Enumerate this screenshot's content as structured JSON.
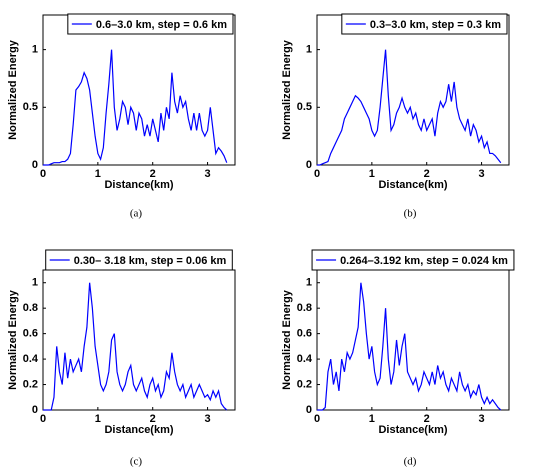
{
  "chart_data": [
    {
      "type": "line",
      "caption": "(a)",
      "xlabel": "Distance(km)",
      "ylabel": "Normalized Energy",
      "xlim": [
        0,
        3.5
      ],
      "ylim": [
        0,
        1.3
      ],
      "xticks": [
        0,
        1,
        2,
        3
      ],
      "yticks": [
        0,
        0.5,
        1
      ],
      "x": [
        0,
        0.05,
        0.1,
        0.15,
        0.2,
        0.25,
        0.3,
        0.35,
        0.4,
        0.45,
        0.5,
        0.55,
        0.6,
        0.65,
        0.7,
        0.75,
        0.8,
        0.85,
        0.9,
        0.95,
        1,
        1.05,
        1.1,
        1.15,
        1.2,
        1.25,
        1.3,
        1.35,
        1.4,
        1.45,
        1.5,
        1.55,
        1.6,
        1.65,
        1.7,
        1.75,
        1.8,
        1.85,
        1.9,
        1.95,
        2,
        2.05,
        2.1,
        2.15,
        2.2,
        2.25,
        2.3,
        2.35,
        2.4,
        2.45,
        2.5,
        2.55,
        2.6,
        2.65,
        2.7,
        2.75,
        2.8,
        2.85,
        2.9,
        2.95,
        3,
        3.05,
        3.1,
        3.15,
        3.2,
        3.25,
        3.3,
        3.35
      ],
      "series": [
        {
          "name": "0.6–3.0 km, step = 0.6 km",
          "color": "#0000ff",
          "values": [
            0,
            0,
            0,
            0.01,
            0.02,
            0.02,
            0.02,
            0.03,
            0.03,
            0.05,
            0.1,
            0.35,
            0.65,
            0.68,
            0.72,
            0.8,
            0.75,
            0.65,
            0.45,
            0.25,
            0.1,
            0.05,
            0.15,
            0.45,
            0.7,
            1,
            0.5,
            0.3,
            0.4,
            0.55,
            0.5,
            0.35,
            0.5,
            0.45,
            0.3,
            0.45,
            0.4,
            0.25,
            0.35,
            0.25,
            0.4,
            0.3,
            0.2,
            0.45,
            0.3,
            0.5,
            0.4,
            0.8,
            0.55,
            0.45,
            0.6,
            0.5,
            0.55,
            0.4,
            0.3,
            0.45,
            0.3,
            0.45,
            0.3,
            0.25,
            0.3,
            0.5,
            0.3,
            0.1,
            0.15,
            0.12,
            0.08,
            0.02
          ]
        }
      ]
    },
    {
      "type": "line",
      "caption": "(b)",
      "xlabel": "Distance(km)",
      "ylabel": "Normalized Energy",
      "xlim": [
        0,
        3.5
      ],
      "ylim": [
        0,
        1.3
      ],
      "xticks": [
        0,
        1,
        2,
        3
      ],
      "yticks": [
        0,
        0.5,
        1
      ],
      "x": [
        0,
        0.05,
        0.1,
        0.15,
        0.2,
        0.25,
        0.3,
        0.35,
        0.4,
        0.45,
        0.5,
        0.55,
        0.6,
        0.65,
        0.7,
        0.75,
        0.8,
        0.85,
        0.9,
        0.95,
        1,
        1.05,
        1.1,
        1.15,
        1.2,
        1.25,
        1.3,
        1.35,
        1.4,
        1.45,
        1.5,
        1.55,
        1.6,
        1.65,
        1.7,
        1.75,
        1.8,
        1.85,
        1.9,
        1.95,
        2,
        2.05,
        2.1,
        2.15,
        2.2,
        2.25,
        2.3,
        2.35,
        2.4,
        2.45,
        2.5,
        2.55,
        2.6,
        2.65,
        2.7,
        2.75,
        2.8,
        2.85,
        2.9,
        2.95,
        3,
        3.05,
        3.1,
        3.15,
        3.2,
        3.25,
        3.3,
        3.35
      ],
      "series": [
        {
          "name": "0.3–3.0 km, step = 0.3 km",
          "color": "#0000ff",
          "values": [
            0,
            0,
            0.01,
            0.02,
            0.03,
            0.1,
            0.15,
            0.2,
            0.25,
            0.3,
            0.4,
            0.45,
            0.5,
            0.55,
            0.6,
            0.58,
            0.55,
            0.5,
            0.45,
            0.4,
            0.3,
            0.25,
            0.3,
            0.5,
            0.75,
            1,
            0.6,
            0.3,
            0.35,
            0.45,
            0.5,
            0.58,
            0.5,
            0.45,
            0.5,
            0.4,
            0.45,
            0.35,
            0.3,
            0.4,
            0.3,
            0.35,
            0.4,
            0.25,
            0.45,
            0.55,
            0.5,
            0.55,
            0.7,
            0.55,
            0.72,
            0.5,
            0.4,
            0.35,
            0.3,
            0.4,
            0.25,
            0.35,
            0.3,
            0.2,
            0.25,
            0.15,
            0.2,
            0.1,
            0.1,
            0.08,
            0.05,
            0.02
          ]
        }
      ]
    },
    {
      "type": "line",
      "caption": "(c)",
      "xlabel": "Distance(km)",
      "ylabel": "Normalized Energy",
      "xlim": [
        0,
        3.5
      ],
      "ylim": [
        0,
        1.1
      ],
      "xticks": [
        0,
        1,
        2,
        3
      ],
      "yticks": [
        0,
        0.2,
        0.4,
        0.6,
        0.8,
        1
      ],
      "x": [
        0,
        0.05,
        0.1,
        0.15,
        0.2,
        0.25,
        0.3,
        0.35,
        0.4,
        0.45,
        0.5,
        0.55,
        0.6,
        0.65,
        0.7,
        0.75,
        0.8,
        0.85,
        0.9,
        0.95,
        1,
        1.05,
        1.1,
        1.15,
        1.2,
        1.25,
        1.3,
        1.35,
        1.4,
        1.45,
        1.5,
        1.55,
        1.6,
        1.65,
        1.7,
        1.75,
        1.8,
        1.85,
        1.9,
        1.95,
        2,
        2.05,
        2.1,
        2.15,
        2.2,
        2.25,
        2.3,
        2.35,
        2.4,
        2.45,
        2.5,
        2.55,
        2.6,
        2.65,
        2.7,
        2.75,
        2.8,
        2.85,
        2.9,
        2.95,
        3,
        3.05,
        3.1,
        3.15,
        3.2,
        3.25,
        3.3,
        3.35
      ],
      "series": [
        {
          "name": "0.30– 3.18 km, step =  0.06 km",
          "color": "#0000ff",
          "values": [
            0,
            0,
            0,
            0,
            0.1,
            0.5,
            0.3,
            0.2,
            0.45,
            0.25,
            0.4,
            0.3,
            0.35,
            0.4,
            0.3,
            0.5,
            0.65,
            1,
            0.8,
            0.5,
            0.35,
            0.2,
            0.15,
            0.2,
            0.3,
            0.55,
            0.6,
            0.3,
            0.2,
            0.15,
            0.2,
            0.3,
            0.35,
            0.2,
            0.15,
            0.2,
            0.25,
            0.15,
            0.1,
            0.2,
            0.25,
            0.15,
            0.2,
            0.1,
            0.15,
            0.3,
            0.25,
            0.45,
            0.3,
            0.2,
            0.15,
            0.2,
            0.1,
            0.15,
            0.2,
            0.1,
            0.15,
            0.2,
            0.15,
            0.1,
            0.12,
            0.08,
            0.15,
            0.1,
            0.15,
            0.05,
            0.02,
            0
          ]
        }
      ]
    },
    {
      "type": "line",
      "caption": "(d)",
      "xlabel": "Distance(km)",
      "ylabel": "Normalized Energy",
      "xlim": [
        0,
        3.5
      ],
      "ylim": [
        0,
        1.1
      ],
      "xticks": [
        0,
        1,
        2,
        3
      ],
      "yticks": [
        0,
        0.2,
        0.4,
        0.6,
        0.8,
        1
      ],
      "x": [
        0,
        0.05,
        0.1,
        0.15,
        0.2,
        0.25,
        0.3,
        0.35,
        0.4,
        0.45,
        0.5,
        0.55,
        0.6,
        0.65,
        0.7,
        0.75,
        0.8,
        0.85,
        0.9,
        0.95,
        1,
        1.05,
        1.1,
        1.15,
        1.2,
        1.25,
        1.3,
        1.35,
        1.4,
        1.45,
        1.5,
        1.55,
        1.6,
        1.65,
        1.7,
        1.75,
        1.8,
        1.85,
        1.9,
        1.95,
        2,
        2.05,
        2.1,
        2.15,
        2.2,
        2.25,
        2.3,
        2.35,
        2.4,
        2.45,
        2.5,
        2.55,
        2.6,
        2.65,
        2.7,
        2.75,
        2.8,
        2.85,
        2.9,
        2.95,
        3,
        3.05,
        3.1,
        3.15,
        3.2,
        3.25,
        3.3,
        3.35
      ],
      "series": [
        {
          "name": "0.264–3.192 km, step = 0.024 km",
          "color": "#0000ff",
          "values": [
            0,
            0,
            0,
            0.02,
            0.3,
            0.4,
            0.2,
            0.3,
            0.15,
            0.4,
            0.3,
            0.45,
            0.4,
            0.45,
            0.55,
            0.65,
            1,
            0.85,
            0.6,
            0.4,
            0.5,
            0.3,
            0.2,
            0.25,
            0.5,
            0.8,
            0.4,
            0.2,
            0.3,
            0.55,
            0.35,
            0.5,
            0.6,
            0.3,
            0.25,
            0.2,
            0.25,
            0.15,
            0.2,
            0.3,
            0.25,
            0.2,
            0.3,
            0.2,
            0.35,
            0.25,
            0.3,
            0.2,
            0.15,
            0.25,
            0.2,
            0.15,
            0.3,
            0.2,
            0.15,
            0.2,
            0.1,
            0.15,
            0.12,
            0.2,
            0.1,
            0.05,
            0.1,
            0.05,
            0.08,
            0.05,
            0.02,
            0
          ]
        }
      ]
    }
  ]
}
